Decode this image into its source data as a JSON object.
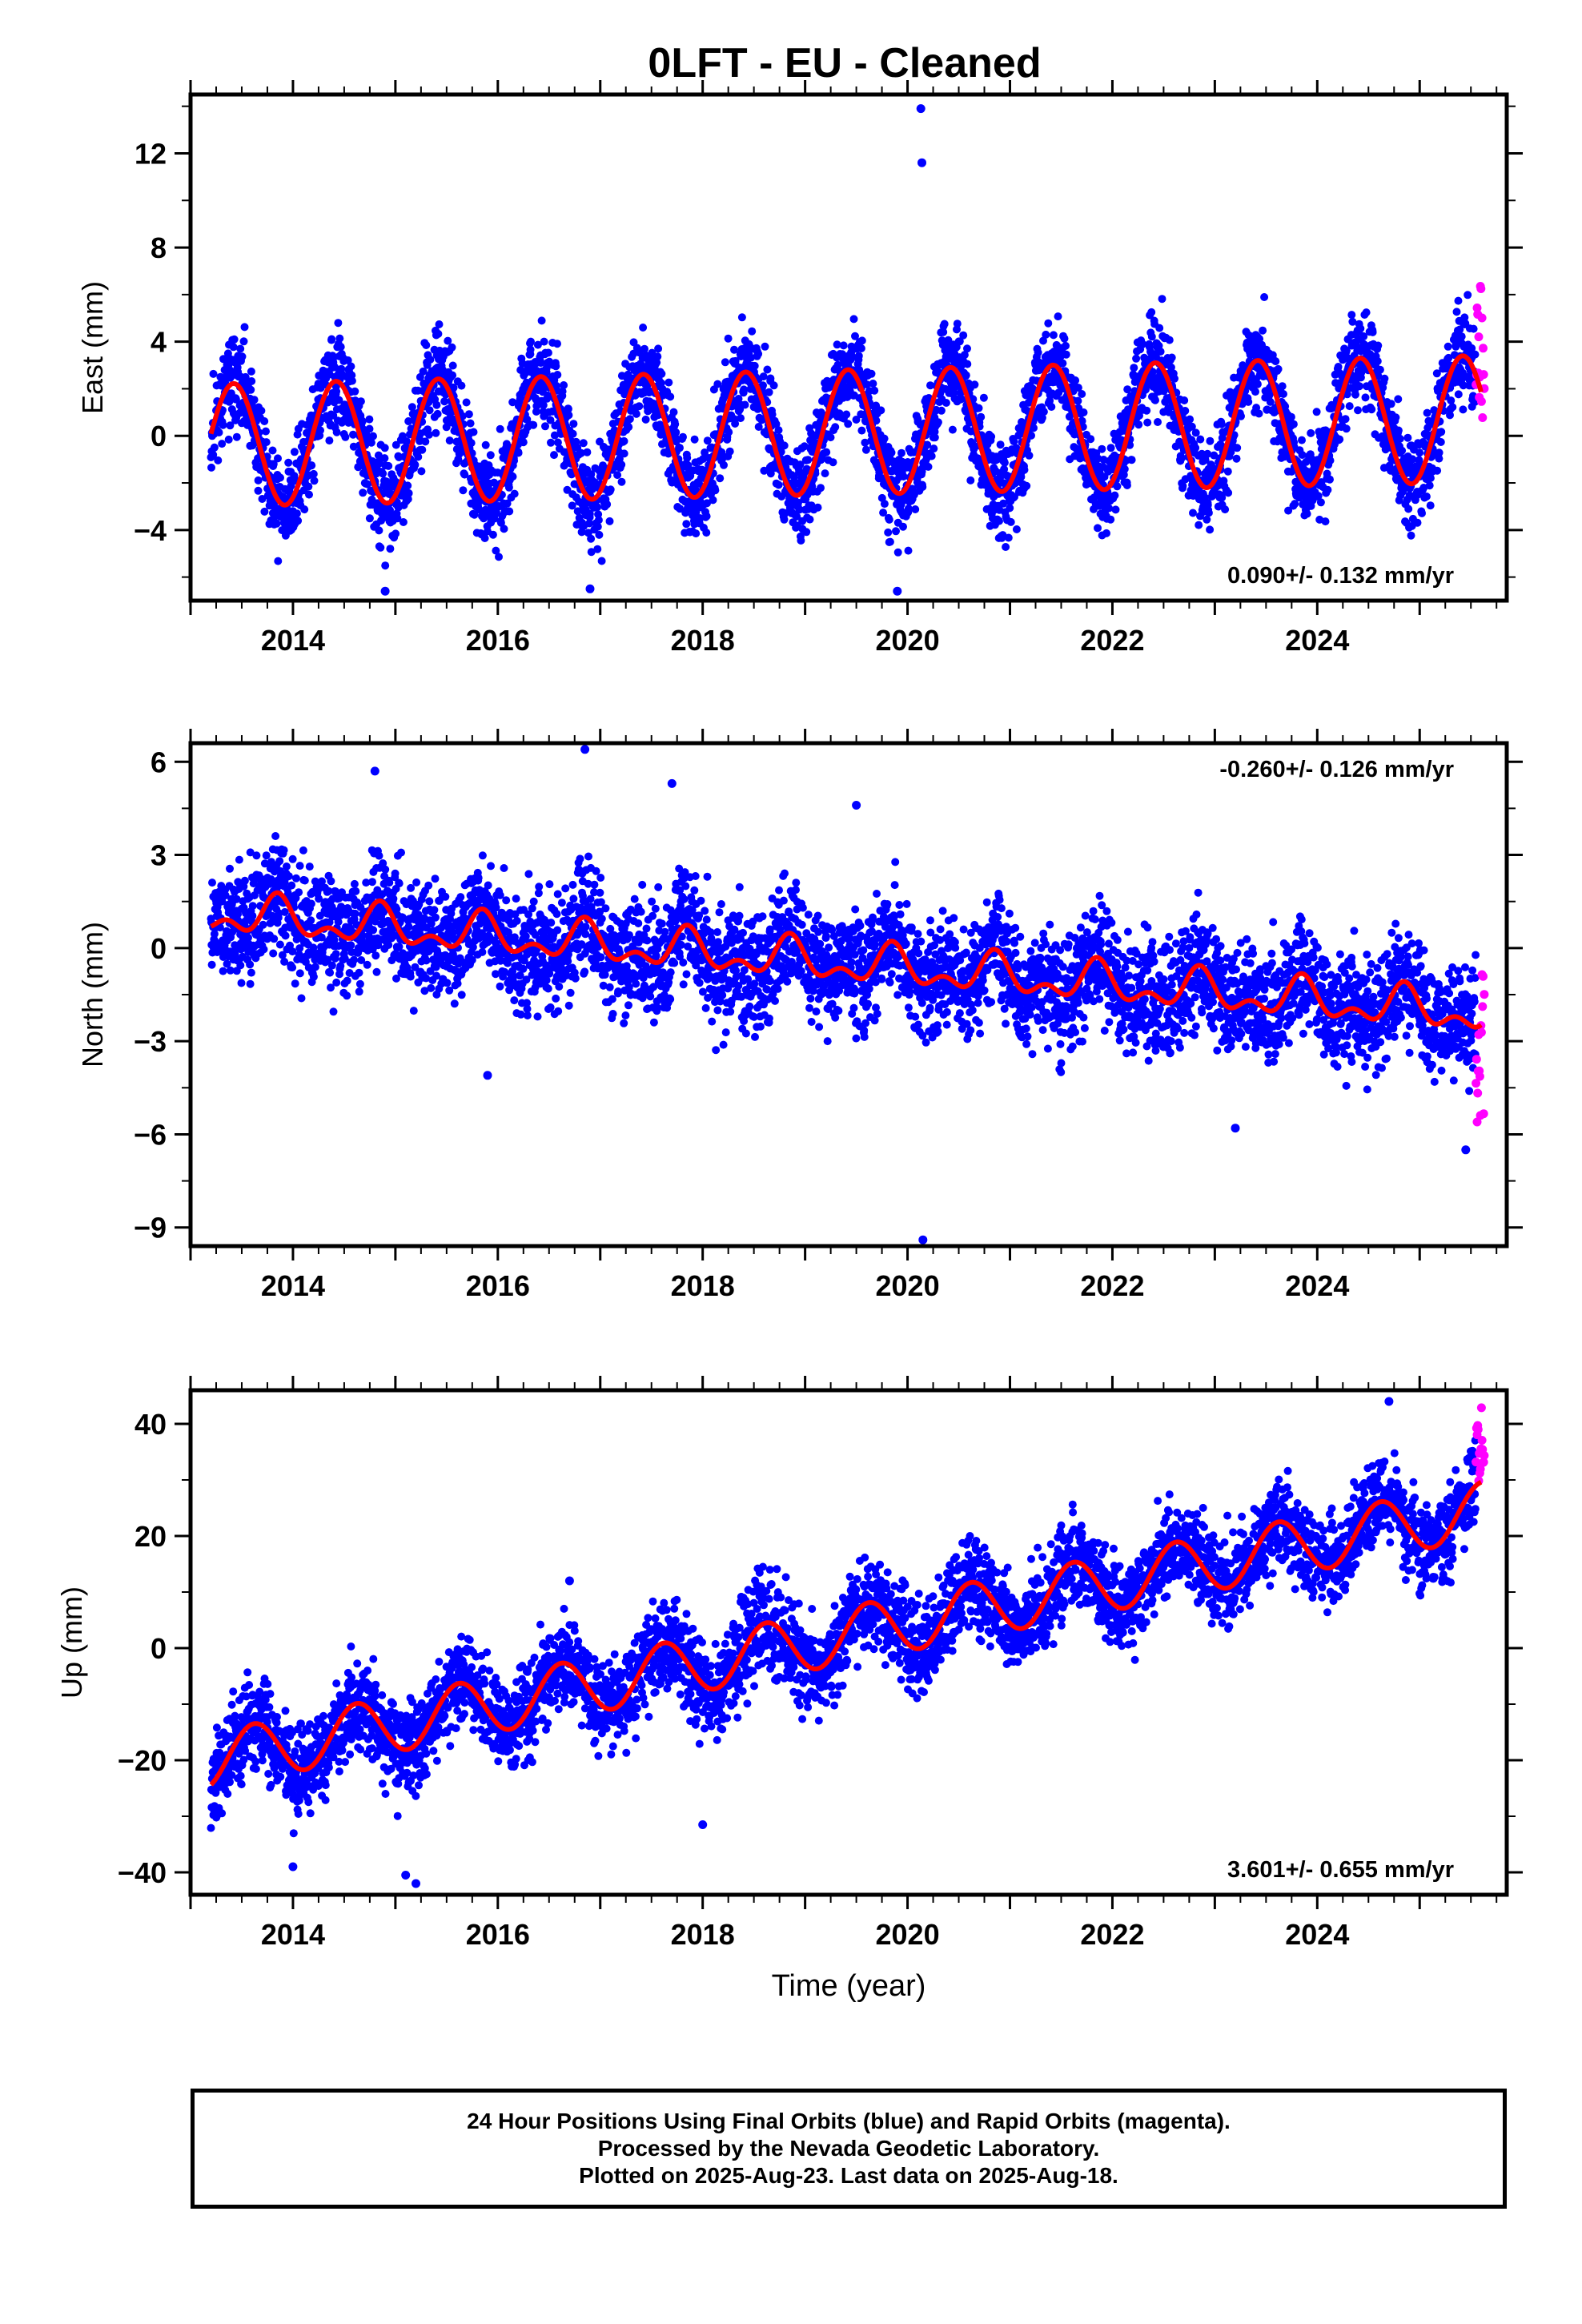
{
  "title": "0LFT  - EU - Cleaned",
  "colors": {
    "final": "#0000ff",
    "rapid": "#ff00ff",
    "model": "#ff0000",
    "frame": "#000000"
  },
  "chart_data": [
    {
      "type": "scatter",
      "panel": "east",
      "ylabel": "East (mm)",
      "xlim": [
        2013.0,
        2025.85
      ],
      "ylim": [
        -7,
        14.5
      ],
      "yticks": [
        -4,
        0,
        4,
        8,
        12
      ],
      "yticklabels": [
        "−4",
        "0",
        "4",
        "8",
        "12"
      ],
      "xticks": [
        2014,
        2016,
        2018,
        2020,
        2022,
        2024
      ],
      "xticklabels": [
        "2014",
        "2016",
        "2018",
        "2020",
        "2022",
        "2024"
      ],
      "rate_label": "0.090+/- 0.132 mm/yr",
      "rate_position": "bottom-right",
      "model": {
        "t0": 2013.2,
        "t1": 2025.6,
        "offset": -0.4,
        "slope": 0.09,
        "amp_start": 2.6,
        "amp_end": 2.7,
        "peak_phase": 0.42,
        "amp2": 0.0
      },
      "scatter": {
        "noise": 1.0,
        "n": 4300,
        "seed": 11
      },
      "outliers": [
        {
          "x": 2020.13,
          "y": 13.9
        },
        {
          "x": 2020.14,
          "y": 11.6
        },
        {
          "x": 2014.9,
          "y": -6.6
        },
        {
          "x": 2016.9,
          "y": -6.5
        },
        {
          "x": 2019.9,
          "y": -6.6
        }
      ],
      "rapid": {
        "t0": 2025.55,
        "t1": 2025.63,
        "spread": [
          0.5,
          6.5
        ]
      }
    },
    {
      "type": "scatter",
      "panel": "north",
      "ylabel": "North (mm)",
      "xlim": [
        2013.0,
        2025.85
      ],
      "ylim": [
        -9.6,
        6.6
      ],
      "yticks": [
        -9,
        -6,
        -3,
        0,
        3,
        6
      ],
      "yticklabels": [
        "−9",
        "−6",
        "−3",
        "0",
        "3",
        "6"
      ],
      "xticks": [
        2014,
        2016,
        2018,
        2020,
        2022,
        2024
      ],
      "xticklabels": [
        "2014",
        "2016",
        "2018",
        "2020",
        "2022",
        "2024"
      ],
      "rate_label": "-0.260+/- 0.126 mm/yr",
      "rate_position": "top-right",
      "model": {
        "t0": 2013.2,
        "t1": 2025.6,
        "offset": 1.1,
        "slope": -0.26,
        "amp_start": 0.5,
        "amp_end": 0.5,
        "peak_phase": 0.85,
        "amp2": 0.35
      },
      "scatter": {
        "noise": 0.9,
        "n": 4300,
        "seed": 23
      },
      "outliers": [
        {
          "x": 2014.8,
          "y": 5.7
        },
        {
          "x": 2016.85,
          "y": 6.4
        },
        {
          "x": 2017.7,
          "y": 5.3
        },
        {
          "x": 2015.9,
          "y": -4.1
        },
        {
          "x": 2020.15,
          "y": -9.4
        },
        {
          "x": 2023.2,
          "y": -5.8
        },
        {
          "x": 2025.45,
          "y": -6.5
        },
        {
          "x": 2019.5,
          "y": 4.6
        }
      ],
      "rapid": {
        "t0": 2025.55,
        "t1": 2025.63,
        "spread": [
          -5.8,
          -0.7
        ]
      }
    },
    {
      "type": "scatter",
      "panel": "up",
      "ylabel": "Up (mm)",
      "xlim": [
        2013.0,
        2025.85
      ],
      "ylim": [
        -44,
        46
      ],
      "yticks": [
        -40,
        -20,
        0,
        20,
        40
      ],
      "yticklabels": [
        "−40",
        "−20",
        "0",
        "20",
        "40"
      ],
      "xticks": [
        2014,
        2016,
        2018,
        2020,
        2022,
        2024
      ],
      "xticklabels": [
        "2014",
        "2016",
        "2018",
        "2020",
        "2022",
        "2024"
      ],
      "xlabel": "Time (year)",
      "rate_label": "3.601+/- 0.655 mm/yr",
      "rate_position": "bottom-right",
      "model": {
        "t0": 2013.2,
        "t1": 2025.6,
        "offset": -20.0,
        "slope": 3.6,
        "amp_start": 5.0,
        "amp_end": 5.0,
        "peak_phase": 0.62,
        "amp2": 0.0
      },
      "scatter": {
        "noise": 4.0,
        "n": 4300,
        "seed": 37
      },
      "outliers": [
        {
          "x": 2014.0,
          "y": -39.0
        },
        {
          "x": 2015.2,
          "y": -42.0
        },
        {
          "x": 2015.1,
          "y": -40.5
        },
        {
          "x": 2024.7,
          "y": 44.0
        },
        {
          "x": 2016.7,
          "y": 12.0
        },
        {
          "x": 2018.0,
          "y": -31.5
        }
      ],
      "rapid": {
        "t0": 2025.55,
        "t1": 2025.63,
        "spread": [
          29.0,
          43.5
        ]
      }
    }
  ],
  "footer": {
    "line1": "24 Hour Positions Using Final Orbits (blue) and Rapid Orbits (magenta).",
    "line2": "Processed by the Nevada Geodetic Laboratory.",
    "line3": "Plotted on 2025-Aug-23. Last data on 2025-Aug-18."
  }
}
